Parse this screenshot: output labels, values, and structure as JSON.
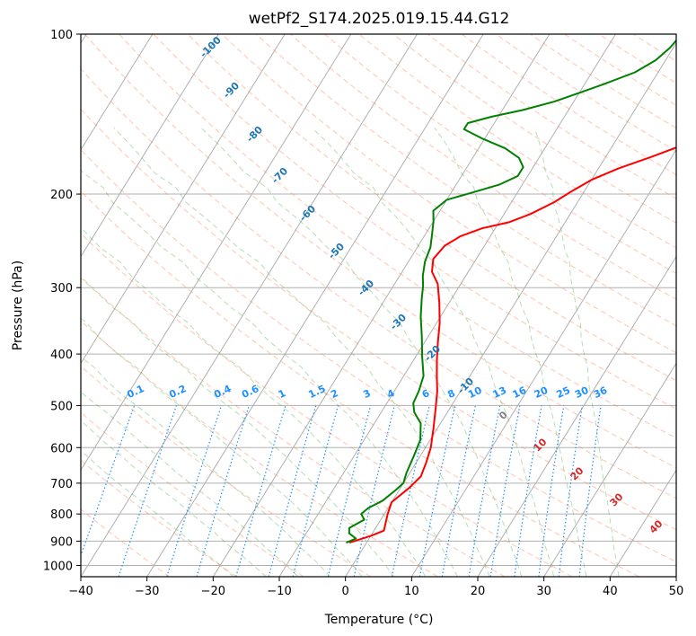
{
  "chart_data": {
    "type": "line",
    "subtype": "skew-t log-p diagram",
    "title": "wetPf2_S174.2025.019.15.44.G12",
    "xlabel": "Temperature (°C)",
    "ylabel": "Pressure (hPa)",
    "xlim": [
      -40,
      50
    ],
    "ylim": [
      1050,
      100
    ],
    "y_scale": "log",
    "grid": true,
    "x_ticks": [
      -40,
      -30,
      -20,
      -10,
      0,
      10,
      20,
      30,
      40,
      50
    ],
    "y_ticks": [
      100,
      200,
      300,
      400,
      500,
      600,
      700,
      800,
      900,
      1000
    ],
    "series": [
      {
        "role": "temperature",
        "color": "#ff0000",
        "points": [
          [
            -2.5,
            905
          ],
          [
            0,
            880
          ],
          [
            1.5,
            860
          ],
          [
            0.5,
            800
          ],
          [
            0,
            760
          ],
          [
            1.3,
            715
          ],
          [
            2,
            680
          ],
          [
            1.5,
            640
          ],
          [
            0.8,
            600
          ],
          [
            -0.5,
            555
          ],
          [
            -2,
            510
          ],
          [
            -3.5,
            470
          ],
          [
            -5,
            440
          ],
          [
            -6.5,
            410
          ],
          [
            -8,
            380
          ],
          [
            -9.5,
            350
          ],
          [
            -11.5,
            320
          ],
          [
            -13.5,
            295
          ],
          [
            -15.5,
            280
          ],
          [
            -16.5,
            265
          ],
          [
            -16,
            250
          ],
          [
            -14.5,
            240
          ],
          [
            -12,
            232
          ],
          [
            -8.5,
            226
          ],
          [
            -6,
            218
          ],
          [
            -3.5,
            207
          ],
          [
            -2,
            198
          ],
          [
            0,
            188
          ],
          [
            3,
            179
          ],
          [
            7,
            170
          ],
          [
            10,
            163
          ],
          [
            13,
            155
          ],
          [
            16,
            147
          ],
          [
            18.5,
            138
          ],
          [
            20.5,
            130
          ],
          [
            22,
            124
          ],
          [
            23,
            116
          ],
          [
            23.5,
            110
          ],
          [
            24,
            106
          ],
          [
            25,
            100
          ]
        ]
      },
      {
        "role": "dewpoint",
        "color": "#008000",
        "points": [
          [
            -3,
            905
          ],
          [
            -2,
            890
          ],
          [
            -3.5,
            870
          ],
          [
            -4,
            850
          ],
          [
            -2.5,
            820
          ],
          [
            -3.5,
            800
          ],
          [
            -3,
            780
          ],
          [
            -1.5,
            755
          ],
          [
            -0.5,
            720
          ],
          [
            0,
            700
          ],
          [
            -0.5,
            670
          ],
          [
            -1,
            620
          ],
          [
            -1.5,
            580
          ],
          [
            -3,
            540
          ],
          [
            -5,
            515
          ],
          [
            -6,
            495
          ],
          [
            -6.3,
            470
          ],
          [
            -7,
            440
          ],
          [
            -9,
            405
          ],
          [
            -11,
            370
          ],
          [
            -13,
            340
          ],
          [
            -14.5,
            315
          ],
          [
            -15.5,
            298
          ],
          [
            -16.5,
            285
          ],
          [
            -17.5,
            268
          ],
          [
            -18,
            252
          ],
          [
            -19,
            238
          ],
          [
            -20,
            225
          ],
          [
            -21,
            215
          ],
          [
            -20,
            205
          ],
          [
            -17,
            199
          ],
          [
            -13.5,
            192
          ],
          [
            -11.5,
            185
          ],
          [
            -11.5,
            178
          ],
          [
            -13,
            171
          ],
          [
            -16,
            164
          ],
          [
            -20.5,
            157
          ],
          [
            -24,
            151
          ],
          [
            -24,
            147
          ],
          [
            -21,
            143
          ],
          [
            -17,
            139
          ],
          [
            -13,
            134
          ],
          [
            -10,
            129
          ],
          [
            -7,
            124
          ],
          [
            -3.5,
            118
          ],
          [
            -1.5,
            112
          ],
          [
            -0.5,
            106
          ],
          [
            0,
            100
          ]
        ]
      }
    ],
    "annotations": {
      "dry_adiabats": {
        "color": "#ff7f50",
        "labels": [
          "-100",
          "-90",
          "-80",
          "-70",
          "-60",
          "-50",
          "-40",
          "-30",
          "-20",
          "-10",
          "0",
          "10",
          "20",
          "30",
          "40"
        ],
        "label_colors": {
          "-100": "#1f77b4",
          "0": "#808080",
          "10": "#d62728",
          "20": "#d62728",
          "30": "#d62728",
          "40": "#d62728"
        }
      },
      "mixing_ratio": {
        "color": "#1e90ff",
        "labels": [
          "0.1",
          "0.2",
          "0.4",
          "0.6",
          "1",
          "1.5",
          "2",
          "3",
          "4",
          "6",
          "8",
          "10",
          "13",
          "16",
          "20",
          "25",
          "30",
          "36"
        ]
      }
    }
  }
}
